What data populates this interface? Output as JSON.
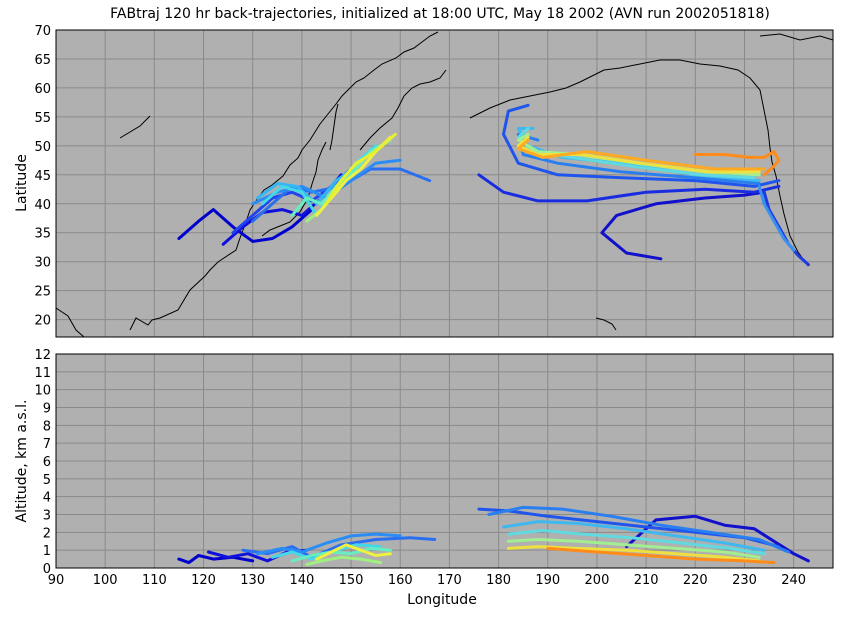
{
  "title": "FABtraj 120 hr back-trajectories, initialized at 18:00 UTC, May 18 2002 (AVN run 2002051818)",
  "chart_data": [
    {
      "panel": "map",
      "type": "line",
      "ylabel": "Latitude",
      "xlim": [
        90,
        248
      ],
      "ylim": [
        17,
        70
      ],
      "yticks": [
        "20",
        "25",
        "30",
        "35",
        "40",
        "45",
        "50",
        "55",
        "60",
        "65",
        "70"
      ],
      "background": "#b0b0b0",
      "grid": true,
      "series": [
        {
          "color": "#0000cc",
          "x": [
            115,
            119,
            122,
            126,
            130,
            134,
            138,
            142
          ],
          "y": [
            34,
            37,
            39,
            36,
            33.5,
            34,
            36,
            39
          ]
        },
        {
          "color": "#1010dd",
          "x": [
            124,
            128,
            132,
            136,
            140,
            144,
            148
          ],
          "y": [
            33,
            36,
            38.5,
            39,
            38,
            41,
            45
          ]
        },
        {
          "color": "#2244ee",
          "x": [
            126,
            130,
            134,
            138,
            142,
            146,
            150
          ],
          "y": [
            35,
            38,
            41,
            42,
            40.5,
            43,
            46
          ]
        },
        {
          "color": "#2a6ff0",
          "x": [
            130,
            134,
            138,
            142,
            148,
            154,
            160,
            166
          ],
          "y": [
            37,
            40,
            43,
            42,
            43,
            46,
            46,
            44
          ]
        },
        {
          "color": "#2a8cf5",
          "x": [
            130,
            135,
            140,
            145,
            150,
            155,
            160
          ],
          "y": [
            40,
            42,
            43,
            41,
            44,
            47,
            47.5
          ]
        },
        {
          "color": "#35b6f5",
          "x": [
            131,
            135,
            139,
            143,
            147,
            152
          ],
          "y": [
            41,
            43.5,
            43,
            40,
            44,
            47
          ]
        },
        {
          "color": "#45d8e8",
          "x": [
            132,
            136,
            140,
            143,
            147,
            151,
            155
          ],
          "y": [
            40,
            43,
            42,
            38,
            43,
            47,
            50
          ]
        },
        {
          "color": "#66eec0",
          "x": [
            138,
            141,
            144,
            147,
            151,
            154,
            158
          ],
          "y": [
            38,
            41,
            40,
            43,
            46,
            49,
            51
          ]
        },
        {
          "color": "#a0f080",
          "x": [
            141,
            144,
            147,
            150,
            153,
            156
          ],
          "y": [
            37,
            39,
            43,
            46,
            48,
            50
          ]
        },
        {
          "color": "#f0f040",
          "x": [
            143,
            146,
            149,
            152,
            155,
            158
          ],
          "y": [
            38,
            41,
            44,
            46,
            49,
            51.5
          ]
        },
        {
          "color": "#e8ee30",
          "x": [
            145,
            148,
            151,
            155,
            159
          ],
          "y": [
            40,
            44,
            47,
            49,
            52
          ]
        },
        {
          "color": "#1111cc",
          "x": [
            213,
            206,
            201,
            204,
            212,
            222,
            230,
            234
          ],
          "y": [
            30.5,
            31.5,
            35,
            38,
            40,
            41,
            41.5,
            42
          ]
        },
        {
          "color": "#1a2ce0",
          "x": [
            176,
            181,
            188,
            198,
            210,
            222,
            232,
            237
          ],
          "y": [
            45,
            42,
            40.5,
            40.5,
            42,
            42.5,
            42,
            43
          ]
        },
        {
          "color": "#1f55ec",
          "x": [
            186,
            182,
            181,
            184,
            192,
            205,
            220,
            232,
            237
          ],
          "y": [
            57,
            56,
            52,
            47,
            45,
            44.5,
            44,
            43,
            44
          ]
        },
        {
          "color": "#2a7ff0",
          "x": [
            188,
            184,
            185,
            192,
            205,
            220,
            233
          ],
          "y": [
            51,
            52,
            48.5,
            47,
            45.5,
            44.5,
            43.5
          ]
        },
        {
          "color": "#3fb8f0",
          "x": [
            187,
            184,
            186,
            193,
            205,
            220,
            233
          ],
          "y": [
            53,
            53,
            50,
            48,
            47,
            45,
            44
          ]
        },
        {
          "color": "#60dae0",
          "x": [
            186,
            184,
            187,
            195,
            207,
            221,
            232
          ],
          "y": [
            53,
            51.5,
            49,
            48,
            46.5,
            45,
            44.5
          ]
        },
        {
          "color": "#a3ee90",
          "x": [
            186,
            184,
            188,
            196,
            208,
            222,
            233
          ],
          "y": [
            52,
            51,
            49,
            48.5,
            47,
            45.5,
            45
          ]
        },
        {
          "color": "#eee040",
          "x": [
            186,
            184,
            188,
            197,
            209,
            223,
            233
          ],
          "y": [
            51.5,
            50,
            48.5,
            48.5,
            47,
            45.5,
            45.5
          ]
        },
        {
          "color": "#ffaa22",
          "x": [
            186,
            184,
            189,
            198,
            210,
            224,
            234
          ],
          "y": [
            51,
            49.5,
            48,
            49,
            47.5,
            46,
            46
          ]
        },
        {
          "color": "#ff8c1a",
          "x": [
            220,
            226,
            231,
            234,
            236,
            237,
            236,
            234
          ],
          "y": [
            48.5,
            48.5,
            48,
            48,
            49,
            47.5,
            46.5,
            45
          ]
        },
        {
          "color": "#1c3adf",
          "x": [
            234,
            235,
            237,
            239,
            241,
            243
          ],
          "y": [
            42,
            39,
            36,
            33,
            31,
            29.5
          ]
        },
        {
          "color": "#3a90ef",
          "x": [
            233,
            234,
            236,
            238,
            240
          ],
          "y": [
            43,
            40,
            37,
            34,
            32
          ]
        }
      ]
    },
    {
      "panel": "altitude",
      "type": "line",
      "xlabel": "Longitude",
      "ylabel": "Altitude, km a.s.l.",
      "xlim": [
        90,
        248
      ],
      "ylim": [
        0,
        12
      ],
      "xticks": [
        "90",
        "100",
        "110",
        "120",
        "130",
        "140",
        "150",
        "160",
        "170",
        "180",
        "190",
        "200",
        "210",
        "220",
        "230",
        "240"
      ],
      "yticks": [
        "0",
        "1",
        "2",
        "3",
        "4",
        "5",
        "6",
        "7",
        "8",
        "9",
        "10",
        "11",
        "12"
      ],
      "background": "#b0b0b0",
      "grid": true,
      "series": [
        {
          "color": "#0000cc",
          "x": [
            115,
            117,
            119,
            122,
            126,
            130
          ],
          "y": [
            0.5,
            0.3,
            0.7,
            0.5,
            0.6,
            0.4
          ]
        },
        {
          "color": "#1010dd",
          "x": [
            121,
            125,
            129,
            133,
            137,
            141
          ],
          "y": [
            0.9,
            0.6,
            0.8,
            0.4,
            0.9,
            1.0
          ]
        },
        {
          "color": "#2a6ff0",
          "x": [
            128,
            133,
            138,
            142,
            148,
            155,
            162,
            167
          ],
          "y": [
            1.0,
            0.8,
            1.2,
            0.6,
            1.3,
            1.6,
            1.7,
            1.6
          ]
        },
        {
          "color": "#2a8cf5",
          "x": [
            131,
            136,
            140,
            145,
            150,
            155,
            160
          ],
          "y": [
            0.8,
            1.1,
            0.9,
            1.4,
            1.8,
            1.9,
            1.8
          ]
        },
        {
          "color": "#45d8e8",
          "x": [
            134,
            138,
            142,
            147,
            151,
            156
          ],
          "y": [
            0.6,
            0.9,
            0.5,
            1.0,
            1.3,
            1.2
          ]
        },
        {
          "color": "#66eec0",
          "x": [
            138,
            142,
            146,
            150,
            154,
            158
          ],
          "y": [
            0.4,
            0.7,
            0.9,
            0.8,
            1.1,
            1.0
          ]
        },
        {
          "color": "#f0f040",
          "x": [
            143,
            146,
            149,
            152,
            155,
            158
          ],
          "y": [
            0.5,
            0.9,
            1.3,
            1.0,
            0.7,
            0.8
          ]
        },
        {
          "color": "#a0f080",
          "x": [
            141,
            144,
            148,
            152,
            156
          ],
          "y": [
            0.2,
            0.4,
            0.6,
            0.5,
            0.3
          ]
        },
        {
          "color": "#1111cc",
          "x": [
            206,
            212,
            220,
            226,
            232,
            236,
            240,
            243
          ],
          "y": [
            1.2,
            2.7,
            2.9,
            2.4,
            2.2,
            1.5,
            0.8,
            0.4
          ]
        },
        {
          "color": "#1f55ec",
          "x": [
            176,
            182,
            190,
            200,
            210,
            220,
            230,
            237
          ],
          "y": [
            3.3,
            3.2,
            2.9,
            2.6,
            2.3,
            2.0,
            1.7,
            1.2
          ]
        },
        {
          "color": "#2a7ff0",
          "x": [
            178,
            185,
            193,
            203,
            213,
            223,
            233,
            239
          ],
          "y": [
            3.0,
            3.4,
            3.3,
            2.9,
            2.4,
            2.0,
            1.6,
            0.9
          ]
        },
        {
          "color": "#3fb8f0",
          "x": [
            181,
            188,
            196,
            206,
            216,
            226,
            234
          ],
          "y": [
            2.3,
            2.6,
            2.5,
            2.2,
            1.8,
            1.4,
            1.0
          ]
        },
        {
          "color": "#60dae0",
          "x": [
            182,
            189,
            197,
            207,
            217,
            227,
            234
          ],
          "y": [
            1.9,
            2.1,
            1.9,
            1.7,
            1.4,
            1.1,
            0.8
          ]
        },
        {
          "color": "#a3ee90",
          "x": [
            182,
            188,
            196,
            206,
            216,
            226,
            233
          ],
          "y": [
            1.5,
            1.6,
            1.5,
            1.3,
            1.1,
            0.9,
            0.6
          ]
        },
        {
          "color": "#eee040",
          "x": [
            182,
            188,
            196,
            206,
            216,
            226,
            233
          ],
          "y": [
            1.1,
            1.2,
            1.1,
            1.0,
            0.8,
            0.6,
            0.4
          ]
        },
        {
          "color": "#ff8c1a",
          "x": [
            190,
            200,
            210,
            220,
            230,
            236
          ],
          "y": [
            1.1,
            0.9,
            0.7,
            0.5,
            0.4,
            0.3
          ]
        }
      ]
    }
  ]
}
